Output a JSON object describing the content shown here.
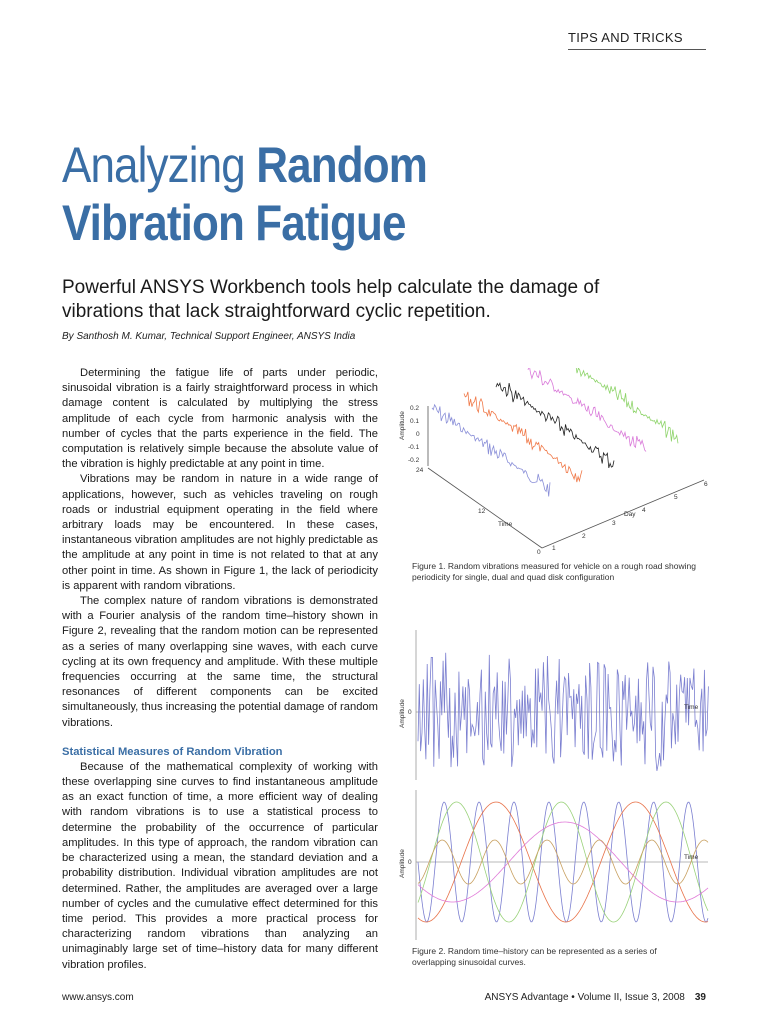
{
  "header": {
    "section": "TIPS AND TRICKS"
  },
  "article": {
    "title_light": "Analyzing ",
    "title_bold_1": "Random",
    "title_bold_2": "Vibration Fatigue",
    "subtitle": "Powerful ANSYS Workbench tools help calculate the damage of vibrations that lack straightforward cyclic repetition.",
    "byline": "By Santhosh M. Kumar, Technical Support Engineer, ANSYS India",
    "paragraphs": [
      "Determining the fatigue life of parts under periodic, sinusoidal vibration is a fairly straightforward process in which damage content is calculated by multiplying the stress amplitude of each cycle from harmonic analysis with the number of cycles that the parts experience in the field. The computation is relatively simple because the absolute value of the vibration is highly predictable at any point in time.",
      "Vibrations may be random in nature in a wide range of applications, however, such as vehicles traveling on rough roads or industrial equipment operating in the field where arbitrary loads may be encountered. In these cases, instantaneous vibration amplitudes are not highly predictable as the amplitude at any point in time is not related to that at any other point in time. As shown in Figure 1, the lack of periodicity is apparent with random vibrations.",
      "The complex nature of random vibrations is demonstrated with a Fourier analysis of the random time–history shown in Figure 2, revealing that the random motion can be represented as a series of many overlapping sine waves, with each curve cycling at its own frequency and amplitude. With these multiple frequencies occurring at the same time, the structural resonances of different components can be excited simultaneously, thus increasing the potential damage of random vibrations."
    ],
    "section_heading": "Statistical Measures of Random Vibration",
    "section_paragraph": "Because of the mathematical complexity of working with these overlapping sine curves to find instantaneous amplitude as an exact function of time, a more efficient way of dealing with random vibrations is to use a statistical process to determine the probability of the occurrence of particular amplitudes. In this type of approach, the random vibration can be characterized using a mean, the standard deviation and a probability distribution. Individual vibration amplitudes are not determined. Rather, the amplitudes are averaged over a large number of cycles and the cumulative effect determined for this time period. This provides a more practical process for characterizing random vibrations than analyzing an unimaginably large set of time–history data for many different vibration profiles."
  },
  "figure1": {
    "caption": "Figure 1. Random vibrations measured for vehicle on a rough road showing periodicity for single, dual and quad disk configuration",
    "ylabel": "Amplitude",
    "y_ticks": [
      "0.2",
      "0.1",
      "0",
      "-0.1",
      "-0.2"
    ],
    "time_label": "Time",
    "time_ticks": [
      "24",
      "12",
      "0"
    ],
    "day_label": "Day",
    "day_ticks": [
      "1",
      "2",
      "3",
      "4",
      "5",
      "6"
    ],
    "series_colors": [
      "#8a8fd8",
      "#f07a4a",
      "#222222",
      "#d97ad9",
      "#8ed46a"
    ]
  },
  "figure2": {
    "caption": "Figure 2. Random time–history can be represented as a series of overlapping sinusoidal curves.",
    "top": {
      "ylabel": "Amplitude",
      "zero": "0",
      "xlabel": "Time",
      "color": "#7b7fd0"
    },
    "bottom": {
      "ylabel": "Amplitude",
      "zero": "0",
      "xlabel": "Time",
      "colors": [
        "#7b7fd0",
        "#e8734a",
        "#9ad27a",
        "#e07ad8",
        "#c8a060"
      ]
    }
  },
  "footer": {
    "website": "www.ansys.com",
    "publication": "ANSYS Advantage  •  Volume II, Issue 3, 2008",
    "page_number": "39"
  }
}
